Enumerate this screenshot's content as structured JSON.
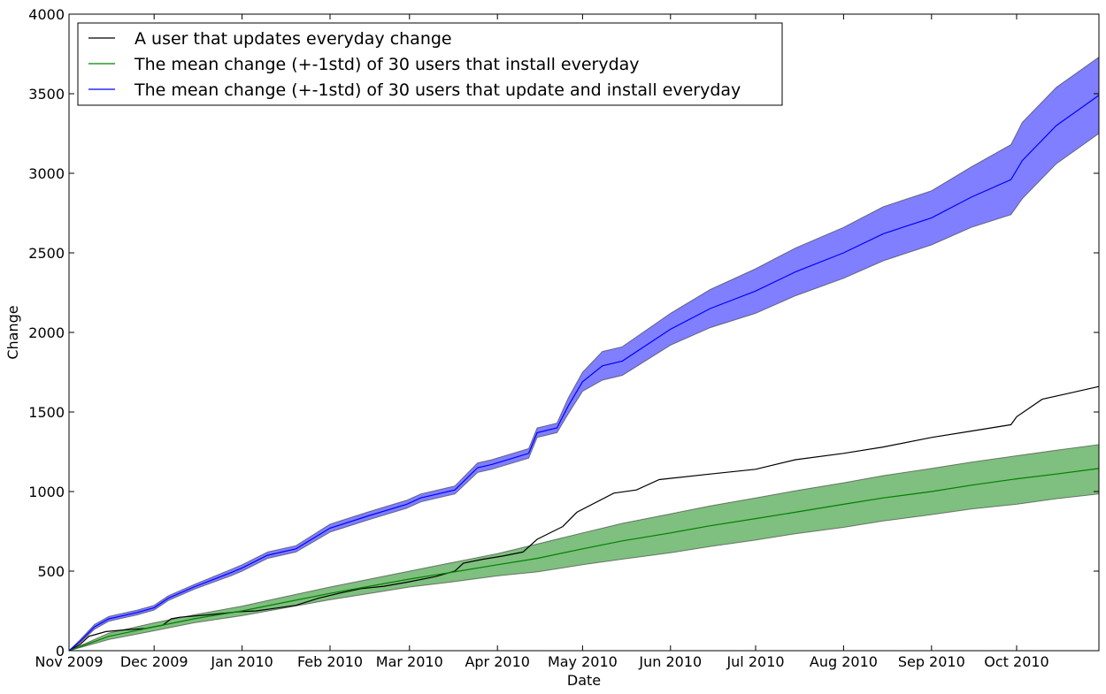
{
  "chart_data": {
    "type": "line",
    "xlabel": "Date",
    "ylabel": "Change",
    "x_ticks": [
      "Nov 2009",
      "Dec 2009",
      "Jan 2010",
      "Feb 2010",
      "Mar 2010",
      "Apr 2010",
      "May 2010",
      "Jun 2010",
      "Jul 2010",
      "Aug 2010",
      "Sep 2010",
      "Oct 2010"
    ],
    "xlim": [
      "2009-11-01",
      "2010-10-30"
    ],
    "ylim": [
      0,
      4000
    ],
    "y_ticks": [
      0,
      500,
      1000,
      1500,
      2000,
      2500,
      3000,
      3500,
      4000
    ],
    "grid": false,
    "legend_position": "top-left",
    "series": [
      {
        "name": "A user that updates everyday change",
        "color": "#000000",
        "x": [
          "2009-11-01",
          "2009-11-05",
          "2009-11-08",
          "2009-11-10",
          "2009-11-14",
          "2009-11-20",
          "2009-11-28",
          "2009-12-04",
          "2009-12-07",
          "2009-12-10",
          "2009-12-20",
          "2009-12-31",
          "2010-01-06",
          "2010-01-12",
          "2010-01-20",
          "2010-01-28",
          "2010-02-04",
          "2010-02-12",
          "2010-02-20",
          "2010-02-28",
          "2010-03-10",
          "2010-03-17",
          "2010-03-20",
          "2010-03-27",
          "2010-04-03",
          "2010-04-10",
          "2010-04-15",
          "2010-04-24",
          "2010-04-29",
          "2010-05-12",
          "2010-05-20",
          "2010-05-28",
          "2010-06-15",
          "2010-07-01",
          "2010-07-15",
          "2010-08-01",
          "2010-08-15",
          "2010-09-01",
          "2010-09-15",
          "2010-09-29",
          "2010-10-01",
          "2010-10-10",
          "2010-10-20",
          "2010-10-30"
        ],
        "y": [
          0,
          40,
          90,
          100,
          120,
          130,
          140,
          160,
          200,
          210,
          225,
          245,
          250,
          265,
          285,
          330,
          360,
          390,
          405,
          430,
          465,
          500,
          550,
          575,
          595,
          620,
          700,
          780,
          870,
          990,
          1010,
          1075,
          1110,
          1140,
          1200,
          1240,
          1280,
          1340,
          1380,
          1420,
          1470,
          1580,
          1620,
          1660
        ]
      },
      {
        "name": "The mean change (+-1std) of 30 users that install everyday",
        "color": "#008000",
        "band_color": "#008000",
        "x": [
          "2009-11-01",
          "2009-11-15",
          "2009-12-01",
          "2009-12-15",
          "2010-01-01",
          "2010-01-15",
          "2010-02-01",
          "2010-02-15",
          "2010-03-01",
          "2010-03-15",
          "2010-04-01",
          "2010-04-15",
          "2010-05-01",
          "2010-05-15",
          "2010-06-01",
          "2010-06-15",
          "2010-07-01",
          "2010-07-15",
          "2010-08-01",
          "2010-08-15",
          "2010-09-01",
          "2010-09-15",
          "2010-10-01",
          "2010-10-15",
          "2010-10-30"
        ],
        "y": [
          0,
          90,
          150,
          200,
          250,
          300,
          360,
          405,
          450,
          490,
          540,
          580,
          640,
          690,
          740,
          785,
          830,
          870,
          920,
          960,
          1000,
          1040,
          1080,
          1110,
          1145
        ],
        "y_low": [
          0,
          70,
          125,
          175,
          220,
          265,
          320,
          360,
          400,
          430,
          470,
          495,
          540,
          575,
          615,
          655,
          695,
          735,
          775,
          815,
          855,
          890,
          920,
          955,
          985
        ],
        "y_high": [
          0,
          110,
          175,
          225,
          280,
          335,
          400,
          450,
          500,
          550,
          610,
          670,
          740,
          800,
          860,
          910,
          960,
          1005,
          1055,
          1100,
          1145,
          1185,
          1225,
          1260,
          1295
        ]
      },
      {
        "name": "The mean change (+-1std) of 30 users that update and install everyday",
        "color": "#0000ff",
        "band_color": "#0000ff",
        "x": [
          "2009-11-01",
          "2009-11-05",
          "2009-11-10",
          "2009-11-15",
          "2009-11-25",
          "2009-12-01",
          "2009-12-06",
          "2009-12-15",
          "2009-12-28",
          "2010-01-01",
          "2010-01-10",
          "2010-01-20",
          "2010-02-01",
          "2010-02-15",
          "2010-02-28",
          "2010-03-05",
          "2010-03-17",
          "2010-03-25",
          "2010-03-30",
          "2010-04-12",
          "2010-04-15",
          "2010-04-22",
          "2010-04-26",
          "2010-05-01",
          "2010-05-08",
          "2010-05-15",
          "2010-06-01",
          "2010-06-15",
          "2010-07-01",
          "2010-07-15",
          "2010-08-01",
          "2010-08-15",
          "2010-09-01",
          "2010-09-15",
          "2010-09-29",
          "2010-10-03",
          "2010-10-15",
          "2010-10-30"
        ],
        "y": [
          0,
          60,
          150,
          200,
          240,
          270,
          330,
          400,
          490,
          520,
          600,
          640,
          770,
          850,
          920,
          960,
          1010,
          1150,
          1170,
          1240,
          1370,
          1400,
          1540,
          1690,
          1790,
          1820,
          2020,
          2150,
          2260,
          2380,
          2500,
          2620,
          2720,
          2850,
          2960,
          3080,
          3300,
          3490
        ],
        "y_low": [
          0,
          50,
          135,
          185,
          225,
          255,
          315,
          385,
          470,
          500,
          580,
          620,
          745,
          825,
          895,
          935,
          985,
          1120,
          1140,
          1210,
          1340,
          1370,
          1490,
          1630,
          1700,
          1730,
          1920,
          2030,
          2120,
          2230,
          2340,
          2450,
          2550,
          2660,
          2740,
          2840,
          3060,
          3250
        ],
        "y_high": [
          0,
          70,
          165,
          215,
          255,
          285,
          345,
          415,
          510,
          540,
          620,
          660,
          795,
          875,
          945,
          985,
          1035,
          1180,
          1200,
          1270,
          1400,
          1430,
          1590,
          1750,
          1880,
          1910,
          2120,
          2270,
          2400,
          2530,
          2660,
          2790,
          2890,
          3040,
          3180,
          3320,
          3540,
          3730
        ]
      }
    ]
  }
}
